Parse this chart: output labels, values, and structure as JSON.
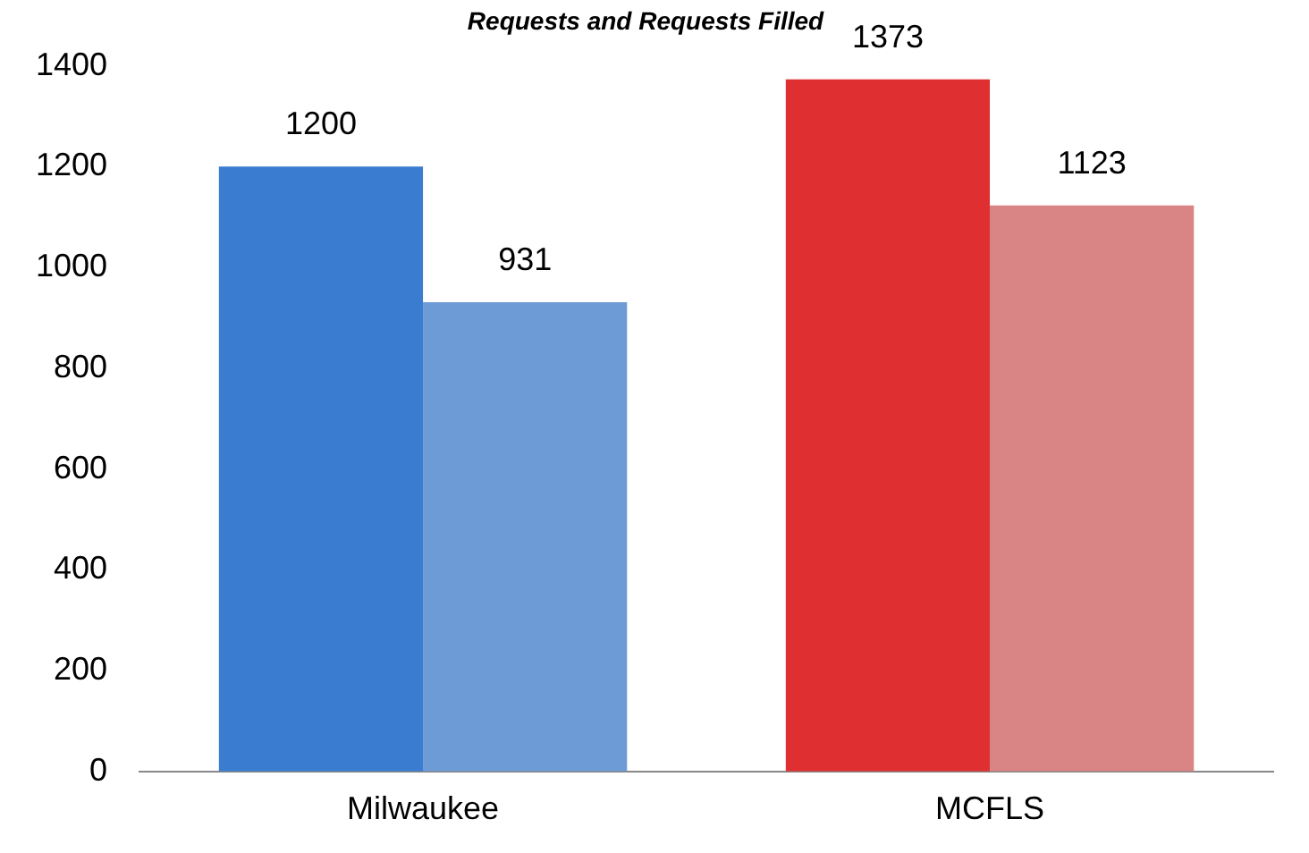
{
  "chart_data": {
    "type": "bar",
    "title": "Requests and Requests Filled",
    "categories": [
      "Milwaukee",
      "MCFLS"
    ],
    "series": [
      {
        "colors": [
          "#3a7dd0",
          "#e02f31"
        ],
        "values": [
          1200,
          1373
        ]
      },
      {
        "colors": [
          "#6d9bd6",
          "#d98585"
        ],
        "values": [
          931,
          1123
        ]
      }
    ],
    "ylim": [
      0,
      1400
    ],
    "yticks": [
      0,
      200,
      400,
      600,
      800,
      1000,
      1200,
      1400
    ],
    "grid": false,
    "data_labels": true,
    "legend": false
  }
}
